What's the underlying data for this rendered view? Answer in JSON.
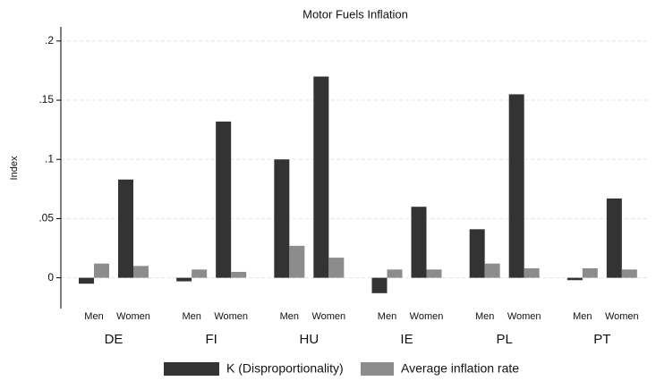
{
  "chart_data": {
    "type": "bar",
    "title": "Motor Fuels Inflation",
    "y_label": "Index",
    "groups": [
      "DE",
      "FI",
      "HU",
      "IE",
      "PL",
      "PT"
    ],
    "categories": [
      "Men",
      "Women",
      "Men",
      "Women",
      "Men",
      "Women",
      "Men",
      "Women",
      "Men",
      "Women",
      "Men",
      "Women"
    ],
    "series": [
      {
        "name": "K (Disproportionality)",
        "color": "#333333",
        "values": [
          -0.005,
          0.083,
          -0.003,
          0.132,
          0.1,
          0.17,
          -0.013,
          0.06,
          0.041,
          0.155,
          -0.002,
          0.067
        ]
      },
      {
        "name": "Average inflation rate",
        "color": "#8c8c8c",
        "values": [
          0.012,
          0.01,
          0.007,
          0.005,
          0.027,
          0.017,
          0.007,
          0.007,
          0.012,
          0.008,
          0.008,
          0.007
        ]
      }
    ],
    "ylim": [
      -0.026,
      0.212
    ],
    "yticks": [
      0,
      {
        "value": 0.05,
        "label": ".05"
      },
      {
        "value": 0.1,
        "label": ".1"
      },
      {
        "value": 0.15,
        "label": ".15"
      },
      {
        "value": 0.2,
        "label": ".2"
      }
    ],
    "grid": true,
    "legend": "bottom"
  }
}
